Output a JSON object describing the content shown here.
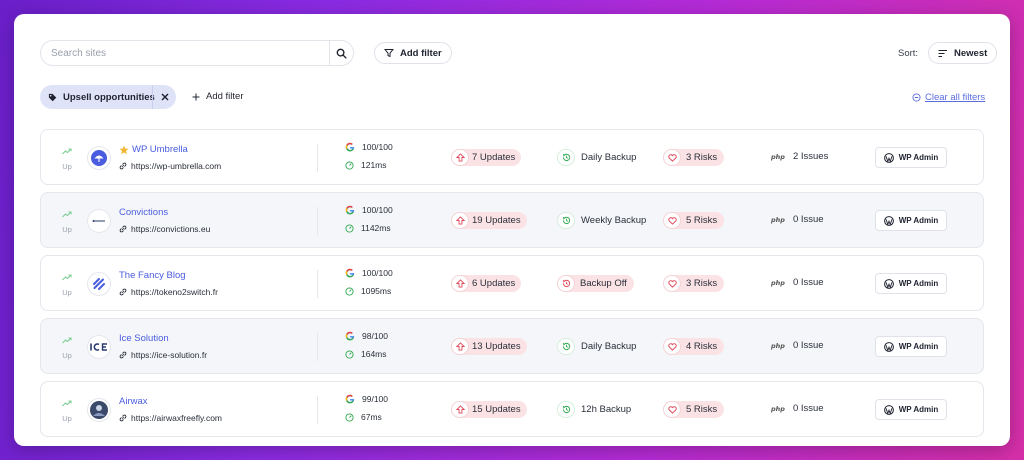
{
  "toolbar": {
    "search_placeholder": "Search sites",
    "add_filter": "Add filter",
    "sort_label": "Sort:",
    "sort_value": "Newest"
  },
  "filters": {
    "active_chip": "Upsell opportunities",
    "add_filter": "Add filter",
    "clear_all": "Clear all filters"
  },
  "sites": [
    {
      "status": "Up",
      "starred": true,
      "name": "WP Umbrella",
      "url": "https://wp-umbrella.com",
      "score": "100/100",
      "speed": "121ms",
      "updates": "7 Updates",
      "backup": "Daily Backup",
      "backup_on": true,
      "risks": "3 Risks",
      "issues": "2 Issues",
      "admin": "WP Admin"
    },
    {
      "status": "Up",
      "starred": false,
      "name": "Convictions",
      "url": "https://convictions.eu",
      "score": "100/100",
      "speed": "1142ms",
      "updates": "19 Updates",
      "backup": "Weekly Backup",
      "backup_on": true,
      "risks": "5 Risks",
      "issues": "0 Issue",
      "admin": "WP Admin"
    },
    {
      "status": "Up",
      "starred": false,
      "name": "The Fancy Blog",
      "url": "https://tokeno2switch.fr",
      "score": "100/100",
      "speed": "1095ms",
      "updates": "6 Updates",
      "backup": "Backup Off",
      "backup_on": false,
      "risks": "3 Risks",
      "issues": "0 Issue",
      "admin": "WP Admin"
    },
    {
      "status": "Up",
      "starred": false,
      "name": "Ice Solution",
      "url": "https://ice-solution.fr",
      "score": "98/100",
      "speed": "164ms",
      "updates": "13 Updates",
      "backup": "Daily Backup",
      "backup_on": true,
      "risks": "4 Risks",
      "issues": "0 Issue",
      "admin": "WP Admin"
    },
    {
      "status": "Up",
      "starred": false,
      "name": "Airwax",
      "url": "https://airwaxfreefly.com",
      "score": "99/100",
      "speed": "67ms",
      "updates": "15 Updates",
      "backup": "12h Backup",
      "backup_on": true,
      "risks": "5 Risks",
      "issues": "0 Issue",
      "admin": "WP Admin"
    }
  ],
  "colors": {
    "accent": "#4a5de0",
    "danger_bg": "#fbe3e5",
    "danger": "#e0485a",
    "success": "#2fa84f"
  }
}
